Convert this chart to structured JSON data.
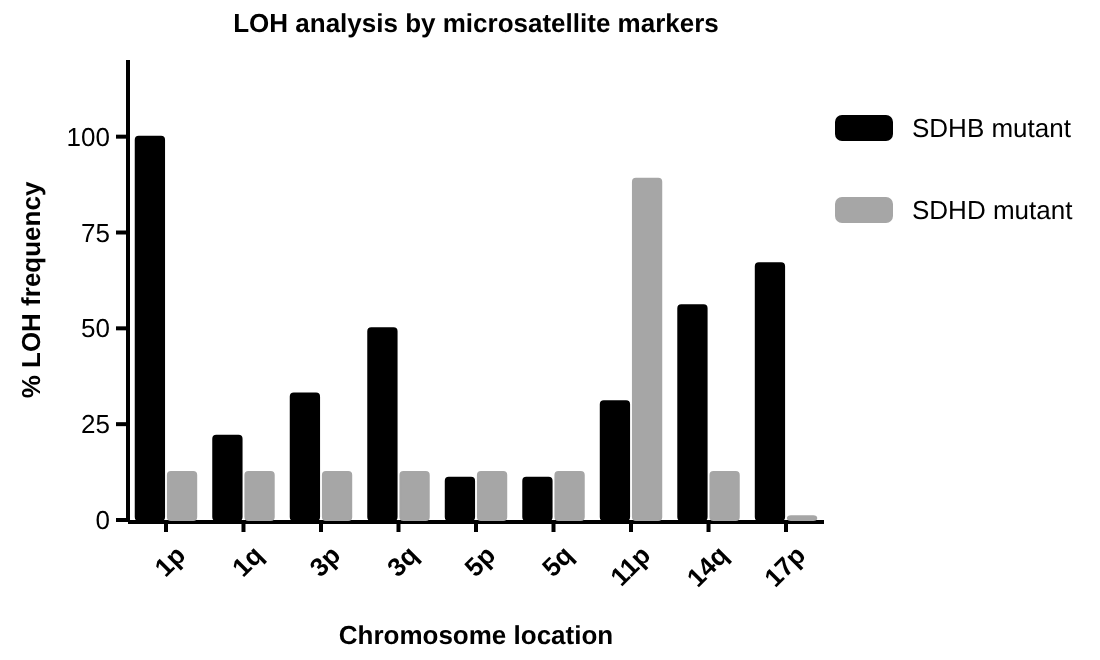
{
  "chart_data": {
    "type": "bar",
    "title": "LOH analysis by microsatellite markers",
    "xlabel": "Chromosome location",
    "ylabel": "% LOH frequency",
    "categories": [
      "1p",
      "1q",
      "3p",
      "3q",
      "5p",
      "5q",
      "11p",
      "14q",
      "17p"
    ],
    "series": [
      {
        "name": "SDHB mutant",
        "color": "#000000",
        "values": [
          100,
          22,
          33,
          50,
          11,
          11,
          31,
          56,
          67
        ]
      },
      {
        "name": "SDHD mutant",
        "color": "#a6a6a6",
        "values": [
          12.5,
          12.5,
          12.5,
          12.5,
          12.5,
          12.5,
          89,
          12.5,
          1
        ]
      }
    ],
    "ylim": [
      0,
      120
    ],
    "yticks": [
      0,
      25,
      50,
      75,
      100
    ],
    "grid": false,
    "legend": "top right"
  }
}
